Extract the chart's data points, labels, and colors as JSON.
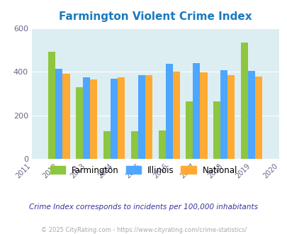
{
  "title": "Farmington Violent Crime Index",
  "all_years": [
    2011,
    2012,
    2013,
    2014,
    2015,
    2016,
    2017,
    2018,
    2019,
    2020
  ],
  "data_years": [
    2012,
    2013,
    2014,
    2015,
    2016,
    2017,
    2018,
    2019
  ],
  "farmington": [
    493,
    330,
    128,
    128,
    130,
    263,
    265,
    535
  ],
  "illinois": [
    413,
    375,
    368,
    383,
    437,
    441,
    407,
    405
  ],
  "national": [
    390,
    365,
    375,
    383,
    400,
    396,
    383,
    377
  ],
  "color_farmington": "#8dc63f",
  "color_illinois": "#4da6ff",
  "color_national": "#ffaa33",
  "bg_color": "#ddeef2",
  "ylim": [
    0,
    600
  ],
  "yticks": [
    0,
    200,
    400,
    600
  ],
  "subtitle": "Crime Index corresponds to incidents per 100,000 inhabitants",
  "footer": "© 2025 CityRating.com - https://www.cityrating.com/crime-statistics/",
  "legend_labels": [
    "Farmington",
    "Illinois",
    "National"
  ],
  "title_color": "#1a7abf",
  "subtitle_color": "#333399",
  "footer_color": "#aaaaaa",
  "grid_color": "#ffffff",
  "tick_label_color": "#666688"
}
